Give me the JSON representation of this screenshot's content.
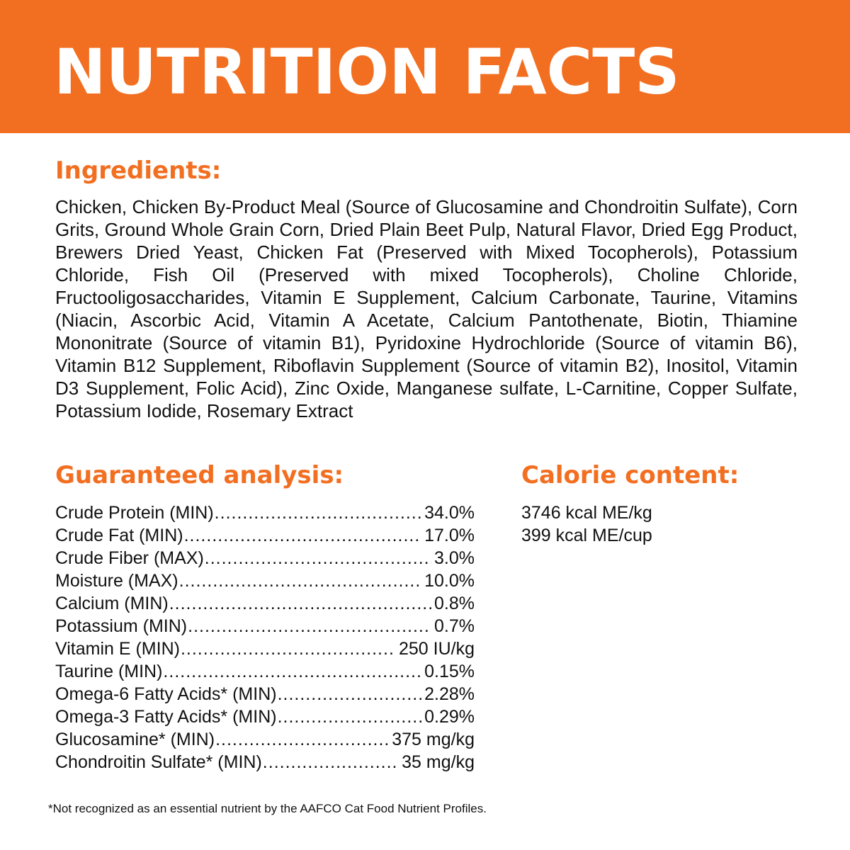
{
  "header": {
    "title": "NUTRITION FACTS"
  },
  "ingredients": {
    "heading": "Ingredients:",
    "text": "Chicken, Chicken By-Product Meal (Source of Glucosamine and Chondroitin Sulfate), Corn Grits, Ground Whole Grain Corn, Dried Plain Beet Pulp, Natural Flavor, Dried Egg Product, Brewers Dried Yeast, Chicken Fat (Preserved with Mixed Tocopherols), Potassium Chloride, Fish Oil (Preserved with mixed Tocopherols), Choline Chloride, Fructooligosaccharides, Vitamin E Supplement, Calcium Carbonate, Taurine, Vitamins (Niacin, Ascorbic Acid, Vitamin A Acetate, Calcium Pantothenate, Biotin, Thiamine Mononitrate (Source of vitamin B1), Pyridoxine Hydrochloride (Source of vitamin B6), Vitamin B12 Supplement, Riboflavin Supplement (Source of vitamin B2), Inositol, Vitamin D3 Supplement, Folic Acid), Zinc Oxide, Manganese sulfate, L-Carnitine, Copper Sulfate, Potassium Iodide, Rosemary Extract"
  },
  "guaranteed_analysis": {
    "heading": "Guaranteed analysis:",
    "rows": [
      {
        "label": "Crude Protein (MIN)",
        "value": "34.0%"
      },
      {
        "label": "Crude Fat (MIN)",
        "value": "17.0%"
      },
      {
        "label": "Crude Fiber (MAX)",
        "value": "3.0%"
      },
      {
        "label": "Moisture (MAX)",
        "value": "10.0%"
      },
      {
        "label": "Calcium (MIN)",
        "value": "0.8%"
      },
      {
        "label": "Potassium (MIN)",
        "value": "0.7%"
      },
      {
        "label": "Vitamin E (MIN)",
        "value": "250 IU/kg"
      },
      {
        "label": "Taurine (MIN)",
        "value": "0.15%"
      },
      {
        "label": "Omega-6 Fatty Acids* (MIN)",
        "value": "2.28%"
      },
      {
        "label": "Omega-3 Fatty Acids* (MIN)",
        "value": "0.29%"
      },
      {
        "label": "Glucosamine* (MIN)",
        "value": "375 mg/kg"
      },
      {
        "label": "Chondroitin Sulfate* (MIN)",
        "value": "35 mg/kg"
      }
    ]
  },
  "calorie_content": {
    "heading": "Calorie content:",
    "lines": [
      "3746 kcal ME/kg",
      "399 kcal ME/cup"
    ]
  },
  "footnote": "*Not recognized as an essential nutrient by the AAFCO Cat Food Nutrient Profiles.",
  "colors": {
    "accent_orange": "#f26f21",
    "header_text": "#ffffff",
    "body_text": "#111111",
    "background": "#ffffff"
  }
}
